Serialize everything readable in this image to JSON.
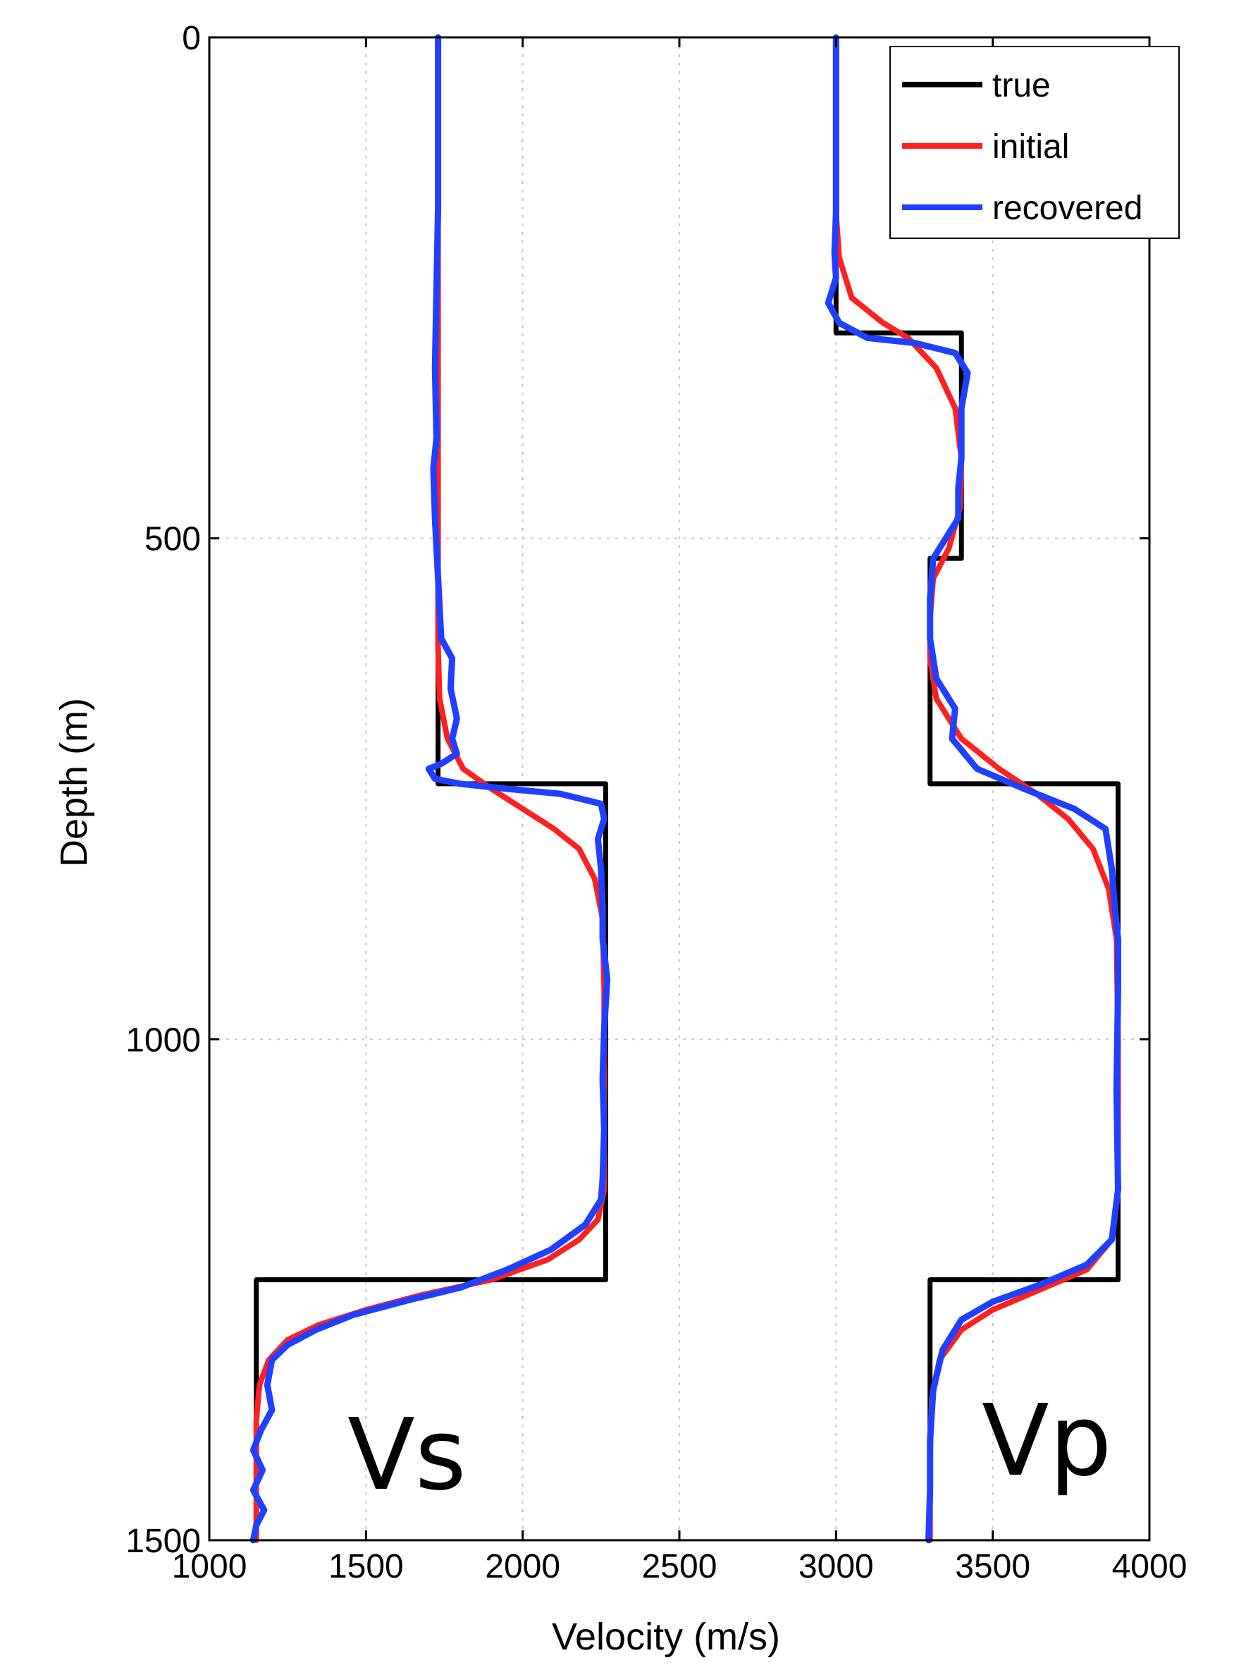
{
  "chart_data": {
    "type": "line",
    "xlabel": "Velocity (m/s)",
    "ylabel": "Depth (m)",
    "xlim": [
      1000,
      4000
    ],
    "ylim": [
      0,
      1500
    ],
    "y_inverted": true,
    "xticks": [
      "1000",
      "1500",
      "2000",
      "2500",
      "3000",
      "3500",
      "4000"
    ],
    "yticks": [
      "0",
      "500",
      "1000",
      "1500"
    ],
    "grid": true,
    "legend_position": "top-right",
    "legend": [
      "true",
      "initial",
      "recovered"
    ],
    "annotations": [
      "Vs",
      "Vp"
    ],
    "colors": {
      "true": "#000000",
      "initial": "#ff2020",
      "recovered": "#2040ff"
    },
    "series": [
      {
        "name": "true",
        "curves": [
          {
            "label": "Vs",
            "points": [
              [
                1730,
                0
              ],
              [
                1730,
                745
              ],
              [
                2265,
                745
              ],
              [
                2265,
                1240
              ],
              [
                1150,
                1240
              ],
              [
                1150,
                1500
              ]
            ]
          },
          {
            "label": "Vp",
            "points": [
              [
                3000,
                0
              ],
              [
                3000,
                295
              ],
              [
                3400,
                295
              ],
              [
                3400,
                520
              ],
              [
                3300,
                520
              ],
              [
                3300,
                745
              ],
              [
                3900,
                745
              ],
              [
                3900,
                1240
              ],
              [
                3300,
                1240
              ],
              [
                3300,
                1500
              ]
            ]
          }
        ]
      },
      {
        "name": "initial",
        "curves": [
          {
            "label": "Vs",
            "points": [
              [
                1730,
                175
              ],
              [
                1730,
                500
              ],
              [
                1730,
                610
              ],
              [
                1735,
                660
              ],
              [
                1760,
                700
              ],
              [
                1810,
                730
              ],
              [
                1900,
                750
              ],
              [
                2000,
                770
              ],
              [
                2100,
                790
              ],
              [
                2180,
                810
              ],
              [
                2230,
                840
              ],
              [
                2255,
                880
              ],
              [
                2260,
                950
              ],
              [
                2260,
                1050
              ],
              [
                2260,
                1150
              ],
              [
                2240,
                1180
              ],
              [
                2180,
                1200
              ],
              [
                2080,
                1220
              ],
              [
                1900,
                1240
              ],
              [
                1680,
                1255
              ],
              [
                1500,
                1270
              ],
              [
                1350,
                1285
              ],
              [
                1250,
                1300
              ],
              [
                1190,
                1320
              ],
              [
                1160,
                1345
              ],
              [
                1150,
                1380
              ],
              [
                1150,
                1500
              ]
            ]
          },
          {
            "label": "Vp",
            "points": [
              [
                3000,
                175
              ],
              [
                3010,
                220
              ],
              [
                3050,
                260
              ],
              [
                3150,
                285
              ],
              [
                3230,
                300
              ],
              [
                3320,
                330
              ],
              [
                3380,
                370
              ],
              [
                3400,
                420
              ],
              [
                3395,
                470
              ],
              [
                3360,
                510
              ],
              [
                3310,
                540
              ],
              [
                3300,
                580
              ],
              [
                3300,
                620
              ],
              [
                3320,
                660
              ],
              [
                3400,
                700
              ],
              [
                3520,
                730
              ],
              [
                3640,
                755
              ],
              [
                3740,
                780
              ],
              [
                3820,
                810
              ],
              [
                3870,
                850
              ],
              [
                3895,
                900
              ],
              [
                3900,
                1000
              ],
              [
                3900,
                1150
              ],
              [
                3880,
                1200
              ],
              [
                3800,
                1230
              ],
              [
                3650,
                1250
              ],
              [
                3500,
                1270
              ],
              [
                3400,
                1290
              ],
              [
                3330,
                1320
              ],
              [
                3305,
                1360
              ],
              [
                3300,
                1420
              ],
              [
                3300,
                1500
              ]
            ]
          }
        ]
      },
      {
        "name": "recovered",
        "curves": [
          {
            "label": "Vs",
            "points": [
              [
                1730,
                0
              ],
              [
                1730,
                100
              ],
              [
                1730,
                170
              ],
              [
                1725,
                250
              ],
              [
                1720,
                330
              ],
              [
                1725,
                400
              ],
              [
                1715,
                430
              ],
              [
                1720,
                480
              ],
              [
                1730,
                540
              ],
              [
                1740,
                600
              ],
              [
                1775,
                620
              ],
              [
                1770,
                650
              ],
              [
                1790,
                680
              ],
              [
                1775,
                700
              ],
              [
                1790,
                715
              ],
              [
                1740,
                725
              ],
              [
                1700,
                730
              ],
              [
                1720,
                740
              ],
              [
                1800,
                745
              ],
              [
                1950,
                750
              ],
              [
                2120,
                755
              ],
              [
                2250,
                765
              ],
              [
                2260,
                780
              ],
              [
                2240,
                800
              ],
              [
                2250,
                830
              ],
              [
                2255,
                870
              ],
              [
                2255,
                900
              ],
              [
                2270,
                940
              ],
              [
                2260,
                990
              ],
              [
                2255,
                1040
              ],
              [
                2260,
                1090
              ],
              [
                2255,
                1140
              ],
              [
                2250,
                1160
              ],
              [
                2200,
                1185
              ],
              [
                2090,
                1210
              ],
              [
                1950,
                1230
              ],
              [
                1800,
                1248
              ],
              [
                1640,
                1260
              ],
              [
                1460,
                1275
              ],
              [
                1340,
                1290
              ],
              [
                1250,
                1305
              ],
              [
                1200,
                1320
              ],
              [
                1185,
                1345
              ],
              [
                1200,
                1370
              ],
              [
                1165,
                1390
              ],
              [
                1140,
                1410
              ],
              [
                1170,
                1430
              ],
              [
                1140,
                1450
              ],
              [
                1175,
                1470
              ],
              [
                1150,
                1485
              ],
              [
                1140,
                1500
              ]
            ]
          },
          {
            "label": "Vp",
            "points": [
              [
                3000,
                0
              ],
              [
                3000,
                100
              ],
              [
                3000,
                175
              ],
              [
                2995,
                215
              ],
              [
                3000,
                240
              ],
              [
                2975,
                265
              ],
              [
                3010,
                285
              ],
              [
                3100,
                300
              ],
              [
                3250,
                305
              ],
              [
                3380,
                315
              ],
              [
                3420,
                335
              ],
              [
                3400,
                370
              ],
              [
                3400,
                420
              ],
              [
                3390,
                450
              ],
              [
                3390,
                480
              ],
              [
                3350,
                500
              ],
              [
                3310,
                520
              ],
              [
                3300,
                560
              ],
              [
                3300,
                600
              ],
              [
                3320,
                640
              ],
              [
                3380,
                670
              ],
              [
                3370,
                700
              ],
              [
                3450,
                730
              ],
              [
                3600,
                750
              ],
              [
                3760,
                770
              ],
              [
                3860,
                790
              ],
              [
                3880,
                830
              ],
              [
                3890,
                870
              ],
              [
                3900,
                900
              ],
              [
                3900,
                950
              ],
              [
                3895,
                1050
              ],
              [
                3900,
                1150
              ],
              [
                3880,
                1200
              ],
              [
                3800,
                1225
              ],
              [
                3650,
                1245
              ],
              [
                3500,
                1262
              ],
              [
                3400,
                1280
              ],
              [
                3340,
                1310
              ],
              [
                3310,
                1350
              ],
              [
                3300,
                1400
              ],
              [
                3300,
                1450
              ],
              [
                3295,
                1500
              ]
            ]
          }
        ]
      }
    ]
  }
}
